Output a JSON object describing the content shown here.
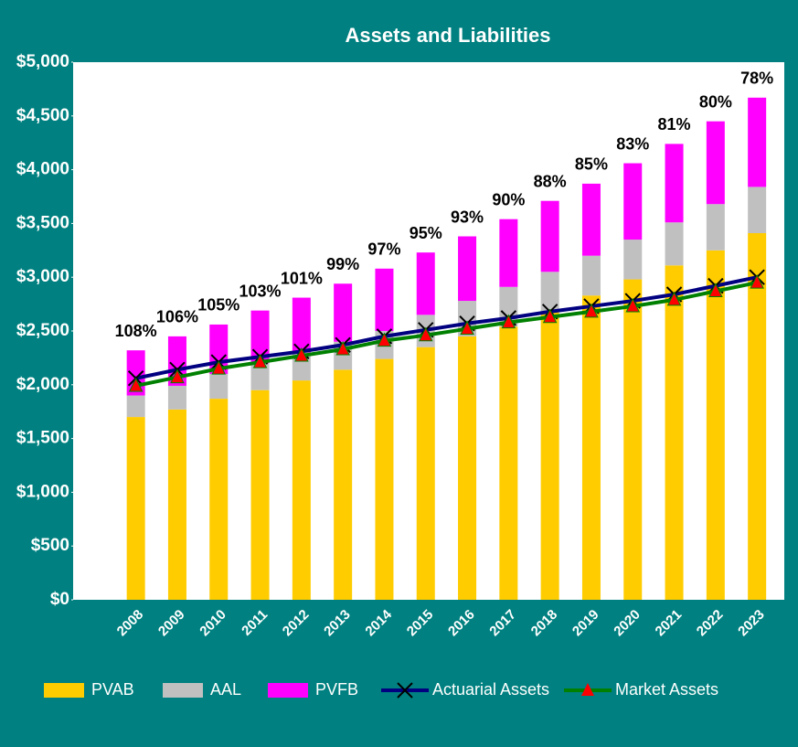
{
  "chart_data": {
    "type": "bar",
    "title": "Assets and Liabilities",
    "categories": [
      "2008",
      "2009",
      "2010",
      "2011",
      "2012",
      "2013",
      "2014",
      "2015",
      "2016",
      "2017",
      "2018",
      "2019",
      "2020",
      "2021",
      "2022",
      "2023"
    ],
    "series": [
      {
        "name": "PVAB",
        "kind": "bar",
        "color": "#FFCC00",
        "values": [
          1700,
          1770,
          1870,
          1950,
          2040,
          2140,
          2240,
          2350,
          2450,
          2540,
          2680,
          2830,
          2980,
          3110,
          3250,
          3410
        ]
      },
      {
        "name": "AAL",
        "kind": "bar",
        "color": "#C0C0C0",
        "values": [
          200,
          220,
          230,
          250,
          260,
          260,
          260,
          300,
          330,
          370,
          370,
          370,
          370,
          400,
          430,
          430
        ]
      },
      {
        "name": "PVFB",
        "kind": "bar",
        "color": "#FF00FF",
        "values": [
          420,
          460,
          460,
          490,
          510,
          540,
          580,
          580,
          600,
          630,
          660,
          670,
          710,
          730,
          770,
          830
        ]
      },
      {
        "name": "Actuarial Assets",
        "kind": "line",
        "marker": "x",
        "color": "#000080",
        "marker_color": "#000000",
        "values": [
          2060,
          2140,
          2210,
          2260,
          2310,
          2370,
          2450,
          2510,
          2570,
          2620,
          2680,
          2730,
          2780,
          2840,
          2920,
          3000
        ]
      },
      {
        "name": "Market Assets",
        "kind": "line",
        "marker": "triangle",
        "color": "#008000",
        "marker_color": "#FF0000",
        "values": [
          1990,
          2070,
          2150,
          2210,
          2270,
          2330,
          2410,
          2460,
          2520,
          2580,
          2630,
          2680,
          2730,
          2790,
          2870,
          2950
        ]
      }
    ],
    "funded_ratio_labels": [
      "108%",
      "106%",
      "105%",
      "103%",
      "101%",
      "99%",
      "97%",
      "95%",
      "93%",
      "90%",
      "88%",
      "85%",
      "83%",
      "81%",
      "80%",
      "78%"
    ],
    "ylim": [
      0,
      5000
    ],
    "yticks": [
      {
        "value": 0,
        "label": "$0"
      },
      {
        "value": 500,
        "label": "$500"
      },
      {
        "value": 1000,
        "label": "$1,000"
      },
      {
        "value": 1500,
        "label": "$1,500"
      },
      {
        "value": 2000,
        "label": "$2,000"
      },
      {
        "value": 2500,
        "label": "$2,500"
      },
      {
        "value": 3000,
        "label": "$3,000"
      },
      {
        "value": 3500,
        "label": "$3,500"
      },
      {
        "value": 4000,
        "label": "$4,000"
      },
      {
        "value": 4500,
        "label": "$4,500"
      },
      {
        "value": 5000,
        "label": "$5,000"
      }
    ],
    "grid": false,
    "legend": "bottom"
  }
}
